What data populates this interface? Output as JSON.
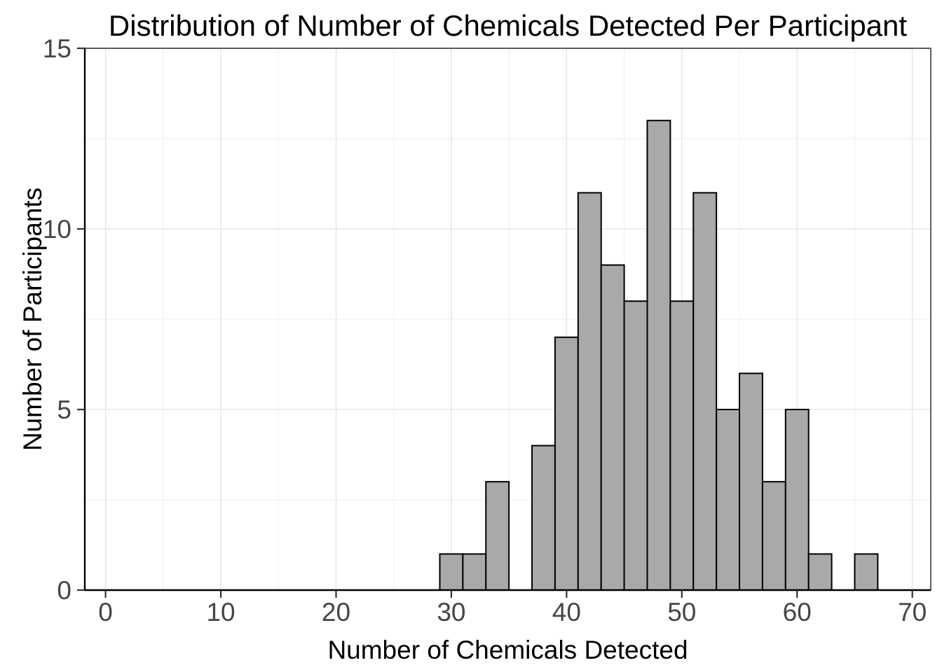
{
  "chart_data": {
    "type": "histogram",
    "title": "Distribution of Number of Chemicals Detected Per Participant",
    "xlabel": "Number of Chemicals Detected",
    "ylabel": "Number of Participants",
    "bin_width": 2,
    "bins": [
      {
        "x0": 29,
        "x1": 31,
        "count": 1
      },
      {
        "x0": 31,
        "x1": 33,
        "count": 1
      },
      {
        "x0": 33,
        "x1": 35,
        "count": 3
      },
      {
        "x0": 35,
        "x1": 37,
        "count": 0
      },
      {
        "x0": 37,
        "x1": 39,
        "count": 4
      },
      {
        "x0": 39,
        "x1": 41,
        "count": 7
      },
      {
        "x0": 41,
        "x1": 43,
        "count": 11
      },
      {
        "x0": 43,
        "x1": 45,
        "count": 9
      },
      {
        "x0": 45,
        "x1": 47,
        "count": 8
      },
      {
        "x0": 47,
        "x1": 49,
        "count": 13
      },
      {
        "x0": 49,
        "x1": 51,
        "count": 8
      },
      {
        "x0": 51,
        "x1": 53,
        "count": 11
      },
      {
        "x0": 53,
        "x1": 55,
        "count": 5
      },
      {
        "x0": 55,
        "x1": 57,
        "count": 6
      },
      {
        "x0": 57,
        "x1": 59,
        "count": 3
      },
      {
        "x0": 59,
        "x1": 61,
        "count": 5
      },
      {
        "x0": 61,
        "x1": 63,
        "count": 1
      },
      {
        "x0": 63,
        "x1": 65,
        "count": 0
      },
      {
        "x0": 65,
        "x1": 67,
        "count": 1
      }
    ],
    "x_ticks": [
      0,
      10,
      20,
      30,
      40,
      50,
      60,
      70
    ],
    "y_ticks": [
      0,
      5,
      10,
      15
    ],
    "x_minor_ticks": [
      5,
      15,
      25,
      35,
      45,
      55,
      65
    ],
    "y_minor_ticks": [
      2.5,
      7.5,
      12.5
    ],
    "xlim": [
      -1.8,
      71.6
    ],
    "ylim": [
      0,
      15
    ],
    "grid": true,
    "legend": false,
    "colors": {
      "bar_fill": "#a9a9a9",
      "bar_stroke": "#000000",
      "grid_major": "#e8e8e8",
      "grid_minor": "#f3f3f3",
      "axis_text": "#454545",
      "axis_title": "#000000",
      "tick": "#333333",
      "panel_border": "#2b2b2b",
      "axis_line": "#000000",
      "background": "#ffffff"
    }
  }
}
